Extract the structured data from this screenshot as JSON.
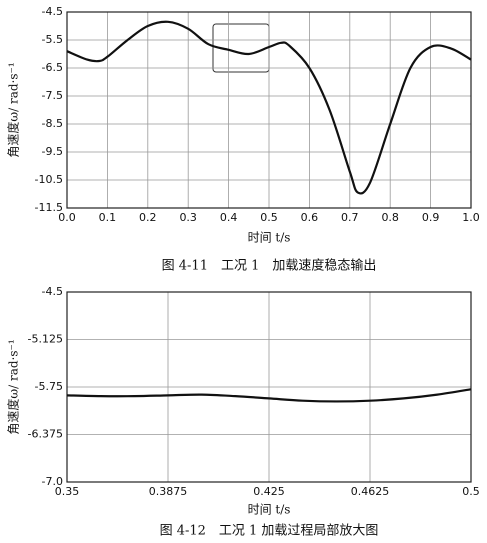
{
  "chart_data": [
    {
      "type": "line",
      "title": "图 4-11　工况 1　加载速度稳态输出",
      "x_label": "时间 t/s",
      "y_label": "角速度ω/ rad·s⁻¹",
      "x": [
        0,
        0.05,
        0.08,
        0.1,
        0.15,
        0.2,
        0.25,
        0.3,
        0.35,
        0.4,
        0.45,
        0.5,
        0.53,
        0.55,
        0.6,
        0.65,
        0.7,
        0.72,
        0.75,
        0.8,
        0.85,
        0.9,
        0.95,
        1.0
      ],
      "values": [
        -5.9,
        -6.2,
        -6.25,
        -6.1,
        -5.5,
        -5.0,
        -4.85,
        -5.1,
        -5.65,
        -5.85,
        -6.0,
        -5.75,
        -5.6,
        -5.7,
        -6.5,
        -8.0,
        -10.2,
        -10.95,
        -10.6,
        -8.5,
        -6.5,
        -5.75,
        -5.8,
        -6.2
      ],
      "color": "#111111",
      "xlim": [
        0,
        1
      ],
      "ylim": [
        -11.5,
        -4.5
      ],
      "xticks": [
        {
          "value": 0,
          "label": "0.0"
        },
        0.1,
        0.2,
        0.3,
        0.4,
        0.5,
        0.6,
        0.7,
        0.8,
        0.9,
        {
          "value": 1,
          "label": "1.0"
        }
      ],
      "yticks": [
        -4.5,
        -5.5,
        -6.5,
        -7.5,
        -8.5,
        -9.5,
        -10.5,
        -11.5
      ],
      "grid": true
    },
    {
      "type": "line",
      "title": "图 4-12　工况 1 加载过程局部放大图",
      "x_label": "时间 t/s",
      "y_label": "角速度ω/ rad·s⁻¹",
      "x": [
        0.35,
        0.3625,
        0.375,
        0.3875,
        0.4,
        0.4125,
        0.425,
        0.4375,
        0.45,
        0.4625,
        0.475,
        0.4875,
        0.5
      ],
      "values": [
        -5.86,
        -5.87,
        -5.87,
        -5.86,
        -5.85,
        -5.87,
        -5.9,
        -5.93,
        -5.94,
        -5.93,
        -5.9,
        -5.85,
        -5.78
      ],
      "color": "#111111",
      "xlim": [
        0.35,
        0.5
      ],
      "ylim": [
        -7.0,
        -4.5
      ],
      "xticks": [
        0.35,
        0.3875,
        0.425,
        0.4625,
        0.5
      ],
      "yticks": [
        -4.5,
        -5.125,
        -5.75,
        -6.375,
        {
          "value": -7,
          "label": "-7.0"
        }
      ],
      "grid": true
    }
  ]
}
